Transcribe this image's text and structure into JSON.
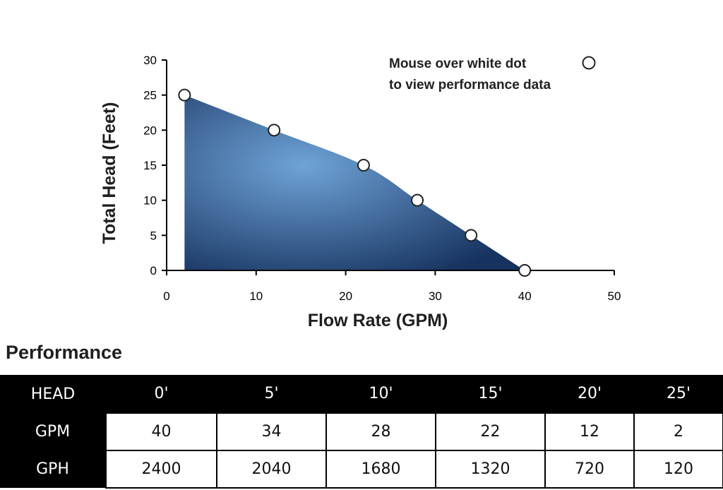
{
  "chart_data": {
    "type": "area",
    "x": [
      2,
      12,
      22,
      28,
      34,
      40
    ],
    "y": [
      25,
      20,
      15,
      10,
      5,
      0
    ],
    "xlabel": "Flow Rate (GPM)",
    "ylabel": "Total Head (Feet)",
    "xlim": [
      0,
      50
    ],
    "ylim": [
      0,
      30
    ],
    "xticks": [
      "0",
      "10",
      "20",
      "30",
      "40",
      "50"
    ],
    "yticks": [
      "0",
      "5",
      "10",
      "15",
      "20",
      "25",
      "30"
    ],
    "grid": false,
    "annotation": [
      "Mouse over white dot",
      "to view performance data"
    ],
    "colors": {
      "fill_center": "#6fa3d8",
      "fill_edge": "#16325e",
      "marker": "#ffffff"
    }
  },
  "performance": {
    "title": "Performance",
    "headers": [
      "HEAD",
      "0'",
      "5'",
      "10'",
      "15'",
      "20'",
      "25'"
    ],
    "rows": [
      [
        "GPM",
        "40",
        "34",
        "28",
        "22",
        "12",
        "2"
      ],
      [
        "GPH",
        "2400",
        "2040",
        "1680",
        "1320",
        "720",
        "120"
      ]
    ]
  }
}
